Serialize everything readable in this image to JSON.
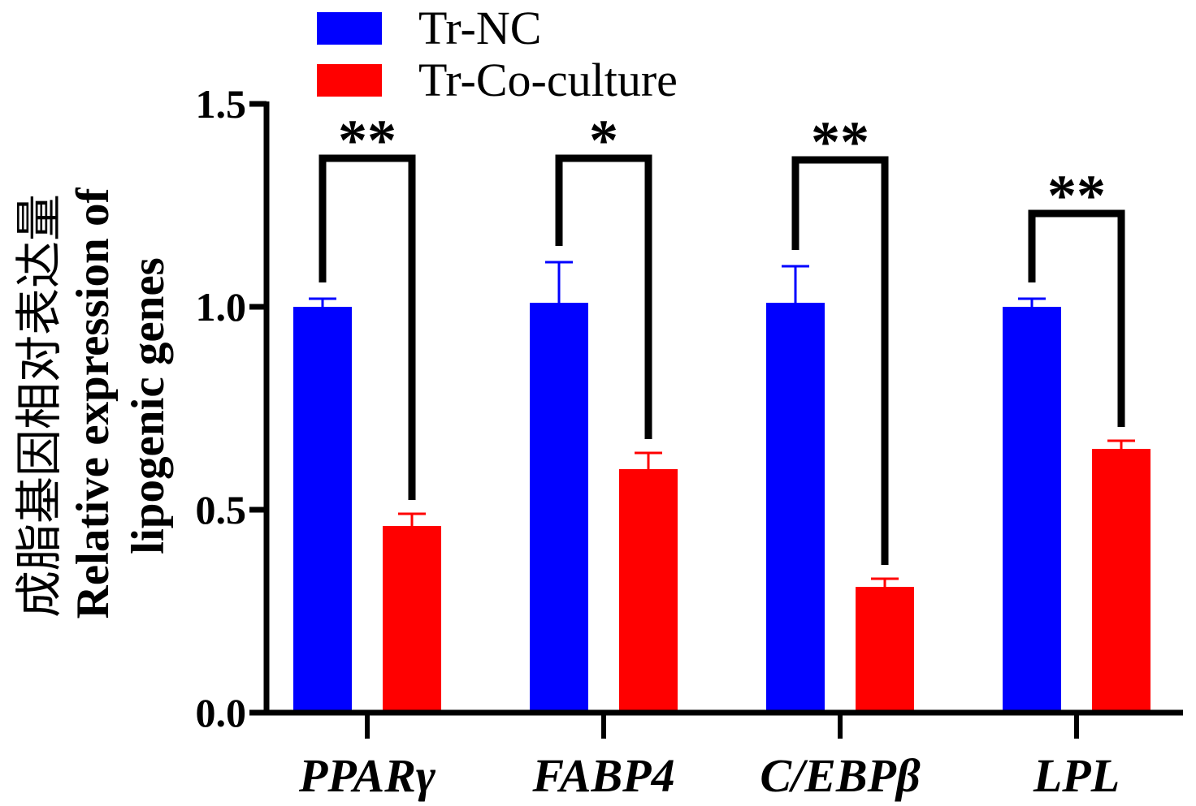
{
  "chart_data": {
    "type": "bar",
    "categories": [
      "PPARγ",
      "FABP4",
      "C/EBPβ",
      "LPL"
    ],
    "series": [
      {
        "name": "Tr-NC",
        "color": "#0000FF",
        "values": [
          1.0,
          1.01,
          1.01,
          1.0
        ],
        "errors": [
          0.02,
          0.1,
          0.09,
          0.02
        ]
      },
      {
        "name": "Tr-Co-culture",
        "color": "#FF0000",
        "values": [
          0.46,
          0.6,
          0.31,
          0.65
        ],
        "errors": [
          0.03,
          0.04,
          0.02,
          0.02
        ]
      }
    ],
    "significance": [
      "**",
      "*",
      "**",
      "**"
    ],
    "ylabel": [
      "成脂基因相对表达量",
      "Relative expression of",
      "lipogenic genes"
    ],
    "ylim": [
      0,
      1.5
    ],
    "ytick_labels": [
      "0.0",
      "0.5",
      "1.0",
      "1.5"
    ],
    "error_bars": "upper",
    "grid": false,
    "legend_position": "top"
  }
}
